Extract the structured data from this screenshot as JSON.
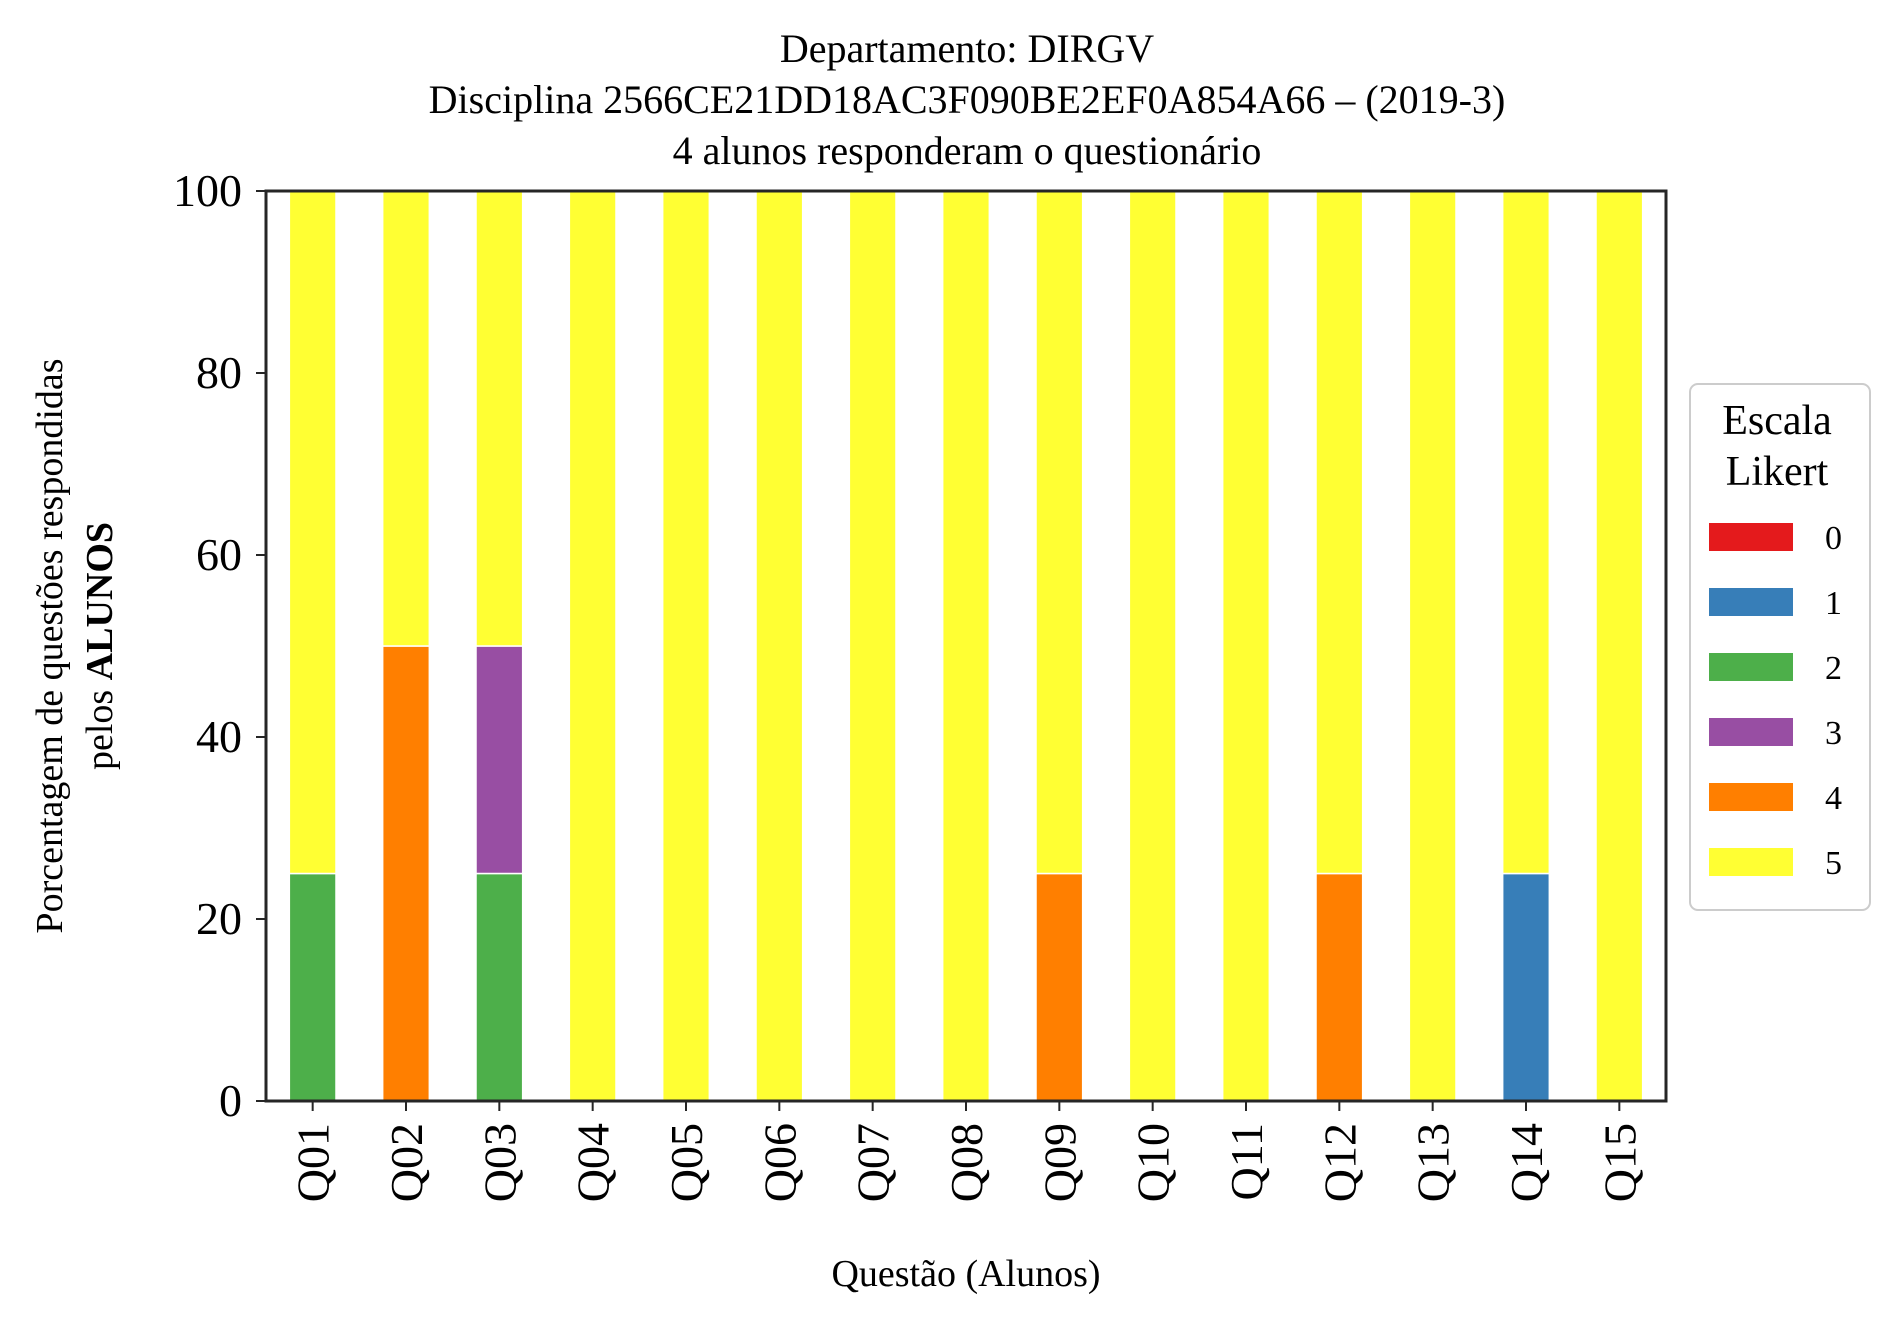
{
  "chart_data": {
    "type": "bar",
    "stacked": true,
    "title_lines": [
      "Departamento: DIRGV",
      "Disciplina 2566CE21DD18AC3F090BE2EF0A854A66 – (2019-3)",
      "4 alunos responderam o questionário"
    ],
    "xlabel": "Questão (Alunos)",
    "ylabel_line1": "Porcentagem de questões respondidas",
    "ylabel_line2_prefix": "pelos ",
    "ylabel_line2_bold": "ALUNOS",
    "ylim": [
      0,
      100
    ],
    "yticks": [
      "0",
      "20",
      "40",
      "60",
      "80",
      "100"
    ],
    "grid": false,
    "categories": [
      "Q01",
      "Q02",
      "Q03",
      "Q04",
      "Q05",
      "Q06",
      "Q07",
      "Q08",
      "Q09",
      "Q10",
      "Q11",
      "Q12",
      "Q13",
      "Q14",
      "Q15"
    ],
    "legend": {
      "title_lines": [
        "Escala",
        "Likert"
      ],
      "placement": "right-center"
    },
    "series": [
      {
        "name": "0",
        "color": "#e41a1c",
        "values": [
          0,
          0,
          0,
          0,
          0,
          0,
          0,
          0,
          0,
          0,
          0,
          0,
          0,
          0,
          0
        ]
      },
      {
        "name": "1",
        "color": "#377eb8",
        "values": [
          0,
          0,
          0,
          0,
          0,
          0,
          0,
          0,
          0,
          0,
          0,
          0,
          0,
          25,
          0
        ]
      },
      {
        "name": "2",
        "color": "#4daf4a",
        "values": [
          25,
          0,
          25,
          0,
          0,
          0,
          0,
          0,
          0,
          0,
          0,
          0,
          0,
          0,
          0
        ]
      },
      {
        "name": "3",
        "color": "#984ea3",
        "values": [
          0,
          0,
          25,
          0,
          0,
          0,
          0,
          0,
          0,
          0,
          0,
          0,
          0,
          0,
          0
        ]
      },
      {
        "name": "4",
        "color": "#ff7f00",
        "values": [
          0,
          50,
          0,
          0,
          0,
          0,
          0,
          0,
          25,
          0,
          0,
          25,
          0,
          0,
          0
        ]
      },
      {
        "name": "5",
        "color": "#ffff33",
        "values": [
          75,
          50,
          50,
          100,
          100,
          100,
          100,
          100,
          75,
          100,
          100,
          75,
          100,
          75,
          100
        ]
      }
    ]
  }
}
